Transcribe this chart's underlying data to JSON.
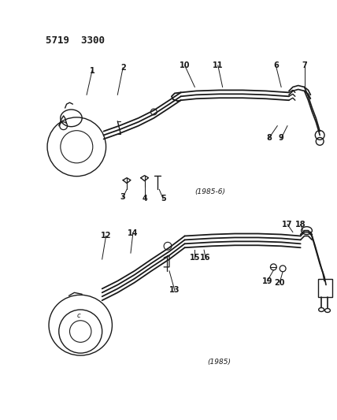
{
  "background_color": "#ffffff",
  "title_text": "5719  3300",
  "title_fontsize": 9,
  "title_fontweight": "bold",
  "fig_width": 4.28,
  "fig_height": 5.33,
  "dpi": 100,
  "line_color": "#1a1a1a",
  "text_color": "#1a1a1a",
  "label_fontsize": 6.5,
  "number_fontsize": 7.0
}
